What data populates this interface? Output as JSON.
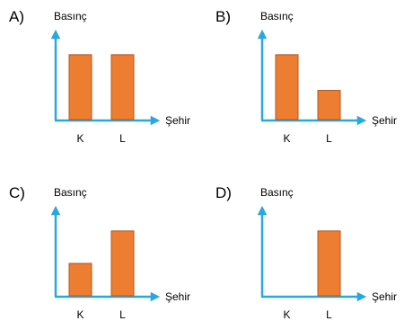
{
  "colors": {
    "axis": "#29A8E0",
    "bar": "#ED7D31",
    "bar_edge": "#B7561C"
  },
  "chart_data": [
    {
      "option": "A)",
      "type": "bar",
      "ylabel": "Basınç",
      "xlabel": "Şehir",
      "categories": [
        "K",
        "L"
      ],
      "values": [
        1.0,
        1.0
      ],
      "ylim": [
        0,
        1.4
      ]
    },
    {
      "option": "B)",
      "type": "bar",
      "ylabel": "Basınç",
      "xlabel": "Şehir",
      "categories": [
        "K",
        "L"
      ],
      "values": [
        1.0,
        0.45
      ],
      "ylim": [
        0,
        1.4
      ]
    },
    {
      "option": "C)",
      "type": "bar",
      "ylabel": "Basınç",
      "xlabel": "Şehir",
      "categories": [
        "K",
        "L"
      ],
      "values": [
        0.5,
        1.0
      ],
      "ylim": [
        0,
        1.4
      ]
    },
    {
      "option": "D)",
      "type": "bar",
      "ylabel": "Basınç",
      "xlabel": "Şehir",
      "categories": [
        "K",
        "L"
      ],
      "values": [
        0,
        1.0
      ],
      "ylim": [
        0,
        1.4
      ]
    }
  ]
}
